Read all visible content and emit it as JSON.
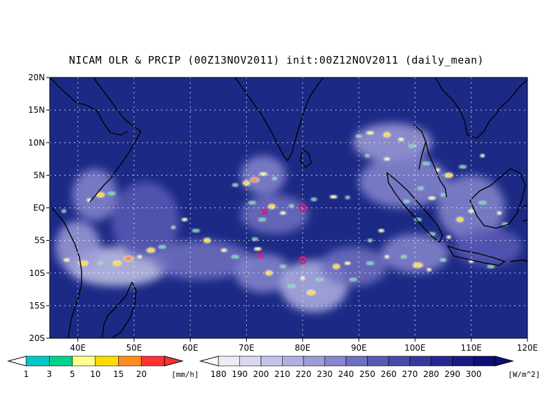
{
  "title": "NICAM OLR & PRCIP (00Z13NOV2011) init:00Z12NOV2011 (daily_mean)",
  "colors": {
    "ocean_base": "#1c2a86",
    "deep_blue": "#121a70",
    "coast": "#000000",
    "grid": "#ffffff",
    "marker": "#e0147c"
  },
  "chart_data": {
    "type": "heatmap",
    "title": "NICAM OLR & PRCIP (00Z13NOV2011) init:00Z12NOV2011 (daily_mean)",
    "xlim": [
      35,
      120
    ],
    "ylim": [
      -20,
      20
    ],
    "x_ticks": [
      40,
      50,
      60,
      70,
      80,
      90,
      100,
      110,
      120
    ],
    "x_tick_labels": [
      "40E",
      "50E",
      "60E",
      "70E",
      "80E",
      "90E",
      "100E",
      "110E",
      "120E"
    ],
    "y_ticks": [
      20,
      15,
      10,
      5,
      0,
      -5,
      -10,
      -15,
      -20
    ],
    "y_tick_labels": [
      "20N",
      "15N",
      "10N",
      "5N",
      "EQ",
      "5S",
      "10S",
      "15S",
      "20S"
    ],
    "grid": true,
    "markers": [
      {
        "symbol": "x",
        "lon": 73.2,
        "lat": -0.6
      },
      {
        "symbol": "x",
        "lon": 72.5,
        "lat": -7.3
      },
      {
        "symbol": "o",
        "lon": 80.0,
        "lat": 0.0
      },
      {
        "symbol": "o",
        "lon": 80.0,
        "lat": -8.0
      }
    ],
    "cloud_regions": [
      {
        "lon": 43,
        "lat": 2,
        "rx": 4,
        "ry": 4,
        "olr": 230
      },
      {
        "lon": 47,
        "lat": -9,
        "rx": 9,
        "ry": 3,
        "olr": 200
      },
      {
        "lon": 40,
        "lat": -6,
        "rx": 4,
        "ry": 4,
        "olr": 215
      },
      {
        "lon": 52,
        "lat": -2,
        "rx": 6,
        "ry": 6,
        "olr": 250
      },
      {
        "lon": 62,
        "lat": -8,
        "rx": 9,
        "ry": 3,
        "olr": 240
      },
      {
        "lon": 73,
        "lat": 5,
        "rx": 4,
        "ry": 3,
        "olr": 225
      },
      {
        "lon": 75,
        "lat": -1,
        "rx": 6,
        "ry": 3,
        "olr": 240
      },
      {
        "lon": 73,
        "lat": -10,
        "rx": 5,
        "ry": 3,
        "olr": 230
      },
      {
        "lon": 82,
        "lat": -12,
        "rx": 6,
        "ry": 4,
        "olr": 210
      },
      {
        "lon": 89,
        "lat": -9,
        "rx": 6,
        "ry": 3,
        "olr": 235
      },
      {
        "lon": 96,
        "lat": 10,
        "rx": 7,
        "ry": 3,
        "olr": 220
      },
      {
        "lon": 98,
        "lat": 4,
        "rx": 8,
        "ry": 4,
        "olr": 230
      },
      {
        "lon": 110,
        "lat": 0,
        "rx": 6,
        "ry": 5,
        "olr": 225
      },
      {
        "lon": 100,
        "lat": -7,
        "rx": 6,
        "ry": 3,
        "olr": 230
      },
      {
        "lon": 113,
        "lat": -6,
        "rx": 6,
        "ry": 3,
        "olr": 245
      }
    ],
    "precip_cells": [
      {
        "lon": 42,
        "lat": 1.2,
        "mm": 5
      },
      {
        "lon": 44,
        "lat": 2,
        "mm": 10
      },
      {
        "lon": 46,
        "lat": 2.2,
        "mm": 3
      },
      {
        "lon": 37.5,
        "lat": -0.5,
        "mm": 3
      },
      {
        "lon": 38,
        "lat": -8,
        "mm": 5
      },
      {
        "lon": 41,
        "lat": -8.5,
        "mm": 10
      },
      {
        "lon": 44,
        "lat": -8.5,
        "mm": 3
      },
      {
        "lon": 47,
        "lat": -8.5,
        "mm": 10
      },
      {
        "lon": 49,
        "lat": -7.8,
        "mm": 15
      },
      {
        "lon": 51,
        "lat": -7.5,
        "mm": 5
      },
      {
        "lon": 53,
        "lat": -6.5,
        "mm": 10
      },
      {
        "lon": 55,
        "lat": -6,
        "mm": 3
      },
      {
        "lon": 57,
        "lat": -3,
        "mm": 3
      },
      {
        "lon": 59,
        "lat": -1.8,
        "mm": 5
      },
      {
        "lon": 61,
        "lat": -3.5,
        "mm": 3
      },
      {
        "lon": 63,
        "lat": -5,
        "mm": 10
      },
      {
        "lon": 66,
        "lat": -6.5,
        "mm": 5
      },
      {
        "lon": 68,
        "lat": -7.5,
        "mm": 3
      },
      {
        "lon": 70,
        "lat": 3.8,
        "mm": 10
      },
      {
        "lon": 71.5,
        "lat": 4.3,
        "mm": 15
      },
      {
        "lon": 73,
        "lat": 5.2,
        "mm": 5
      },
      {
        "lon": 75,
        "lat": 4.5,
        "mm": 3
      },
      {
        "lon": 68,
        "lat": 3.5,
        "mm": 3
      },
      {
        "lon": 71,
        "lat": 0.8,
        "mm": 3
      },
      {
        "lon": 74.5,
        "lat": 0.2,
        "mm": 10
      },
      {
        "lon": 76.5,
        "lat": -0.8,
        "mm": 5
      },
      {
        "lon": 72.8,
        "lat": -1.8,
        "mm": 3
      },
      {
        "lon": 78,
        "lat": 0.3,
        "mm": 3
      },
      {
        "lon": 82,
        "lat": 1.3,
        "mm": 3
      },
      {
        "lon": 85.5,
        "lat": 1.7,
        "mm": 5
      },
      {
        "lon": 88,
        "lat": 1.6,
        "mm": 3
      },
      {
        "lon": 71.5,
        "lat": -4.8,
        "mm": 3
      },
      {
        "lon": 72,
        "lat": -6.3,
        "mm": 5
      },
      {
        "lon": 74,
        "lat": -10,
        "mm": 10
      },
      {
        "lon": 76.5,
        "lat": -9,
        "mm": 3
      },
      {
        "lon": 78,
        "lat": -12,
        "mm": 3
      },
      {
        "lon": 80,
        "lat": -10.8,
        "mm": 5
      },
      {
        "lon": 81.5,
        "lat": -13,
        "mm": 10
      },
      {
        "lon": 83,
        "lat": -11,
        "mm": 3
      },
      {
        "lon": 86,
        "lat": -9,
        "mm": 10
      },
      {
        "lon": 88,
        "lat": -8.5,
        "mm": 5
      },
      {
        "lon": 89,
        "lat": -11,
        "mm": 3
      },
      {
        "lon": 92,
        "lat": -5,
        "mm": 3
      },
      {
        "lon": 94,
        "lat": -3.5,
        "mm": 5
      },
      {
        "lon": 92,
        "lat": -8.5,
        "mm": 3
      },
      {
        "lon": 95,
        "lat": -7.5,
        "mm": 5
      },
      {
        "lon": 90,
        "lat": 11,
        "mm": 3
      },
      {
        "lon": 92,
        "lat": 11.5,
        "mm": 5
      },
      {
        "lon": 95,
        "lat": 11.2,
        "mm": 10
      },
      {
        "lon": 97.5,
        "lat": 10.5,
        "mm": 5
      },
      {
        "lon": 99.5,
        "lat": 9.5,
        "mm": 3
      },
      {
        "lon": 91.5,
        "lat": 8,
        "mm": 3
      },
      {
        "lon": 95,
        "lat": 7.5,
        "mm": 5
      },
      {
        "lon": 102,
        "lat": 6.8,
        "mm": 3
      },
      {
        "lon": 104,
        "lat": 5.8,
        "mm": 5
      },
      {
        "lon": 106,
        "lat": 5,
        "mm": 10
      },
      {
        "lon": 108.5,
        "lat": 6.3,
        "mm": 3
      },
      {
        "lon": 112,
        "lat": 8,
        "mm": 5
      },
      {
        "lon": 101,
        "lat": 3,
        "mm": 3
      },
      {
        "lon": 103,
        "lat": 1.5,
        "mm": 5
      },
      {
        "lon": 105,
        "lat": 2,
        "mm": 3
      },
      {
        "lon": 98.5,
        "lat": 1,
        "mm": 3
      },
      {
        "lon": 100.5,
        "lat": -1.8,
        "mm": 3
      },
      {
        "lon": 108,
        "lat": -1.8,
        "mm": 10
      },
      {
        "lon": 110,
        "lat": -0.5,
        "mm": 5
      },
      {
        "lon": 112,
        "lat": 0.8,
        "mm": 3
      },
      {
        "lon": 115,
        "lat": -0.8,
        "mm": 5
      },
      {
        "lon": 116,
        "lat": -2.5,
        "mm": 3
      },
      {
        "lon": 103,
        "lat": -4,
        "mm": 3
      },
      {
        "lon": 106,
        "lat": -4.5,
        "mm": 5
      },
      {
        "lon": 98,
        "lat": -7.5,
        "mm": 3
      },
      {
        "lon": 100.5,
        "lat": -8.8,
        "mm": 10
      },
      {
        "lon": 102.5,
        "lat": -9.5,
        "mm": 5
      },
      {
        "lon": 105,
        "lat": -8,
        "mm": 3
      },
      {
        "lon": 113.5,
        "lat": -9,
        "mm": 3
      },
      {
        "lon": 110,
        "lat": -8.2,
        "mm": 5
      }
    ],
    "precip_colorbar": {
      "levels": [
        "1",
        "3",
        "5",
        "10",
        "15",
        "20"
      ],
      "colors": [
        "#00c8c8",
        "#00d28c",
        "#ffff8c",
        "#ffdc00",
        "#ff8c1e",
        "#ff3232"
      ],
      "unit": "[mm/h]"
    },
    "olr_colorbar": {
      "levels": [
        "180",
        "190",
        "200",
        "210",
        "220",
        "230",
        "240",
        "250",
        "260",
        "270",
        "280",
        "290",
        "300"
      ],
      "colors": [
        "#ececf8",
        "#d8d8f0",
        "#c4c4e8",
        "#b0b0e0",
        "#9c9cd6",
        "#8686cc",
        "#7070c0",
        "#5a5ab4",
        "#4a4aa8",
        "#38389c",
        "#282890",
        "#1a1a84",
        "#0e0e74"
      ],
      "unit": "[W/m^2]"
    }
  }
}
